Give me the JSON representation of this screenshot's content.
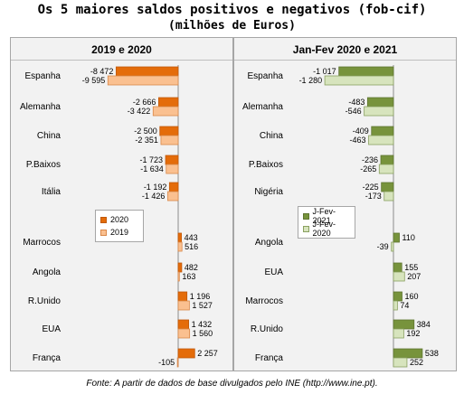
{
  "title": "Os 5 maiores saldos positivos e negativos (fob-cif)",
  "subtitle": "(milhões de Euros)",
  "footer": "Fonte: A partir de dados de base divulgados pelo INE (http://www.ine.pt).",
  "colors": {
    "dark_orange": "#e46c0a",
    "light_orange": "#fac090",
    "dark_green": "#77933c",
    "light_green": "#d7e4bd"
  },
  "chart_data": [
    {
      "type": "bar",
      "orientation": "horizontal",
      "title": "2019 e 2020",
      "categories": [
        "Espanha",
        "Alemanha",
        "China",
        "P.Baixos",
        "Itália",
        "Marrocos",
        "Angola",
        "R.Unido",
        "EUA",
        "França"
      ],
      "series": [
        {
          "name": "2020",
          "values": [
            -8472,
            -2666,
            -2500,
            -1723,
            -1192,
            443,
            482,
            1196,
            1432,
            2257
          ],
          "labels": [
            "-8 472",
            "-2 666",
            "-2 500",
            "-1 723",
            "-1 192",
            "443",
            "482",
            "1 196",
            "1 432",
            "2 257"
          ]
        },
        {
          "name": "2019",
          "values": [
            -9595,
            -3422,
            -2351,
            -1634,
            -1426,
            516,
            163,
            1527,
            1560,
            -105
          ],
          "labels": [
            "-9 595",
            "-3 422",
            "-2 351",
            "-1 634",
            "-1 426",
            "516",
            "163",
            "1 527",
            "1 560",
            "-105"
          ]
        }
      ],
      "legend_position": "middle-center"
    },
    {
      "type": "bar",
      "orientation": "horizontal",
      "title": "Jan-Fev 2020 e 2021",
      "categories": [
        "Espanha",
        "Alemanha",
        "China",
        "P.Baixos",
        "Nigéria",
        "Angola",
        "EUA",
        "Marrocos",
        "R.Unido",
        "França"
      ],
      "series": [
        {
          "name": "J-Fev-2021",
          "values": [
            -1017,
            -483,
            -409,
            -236,
            -225,
            110,
            155,
            160,
            384,
            538
          ],
          "labels": [
            "-1 017",
            "-483",
            "-409",
            "-236",
            "-225",
            "110",
            "155",
            "160",
            "384",
            "538"
          ]
        },
        {
          "name": "J-Fev-2020",
          "values": [
            -1280,
            -546,
            -463,
            -265,
            -173,
            -39,
            207,
            74,
            192,
            252
          ],
          "labels": [
            "-1 280",
            "-546",
            "-463",
            "-265",
            "-173",
            "-39",
            "207",
            "74",
            "192",
            "252"
          ]
        }
      ],
      "legend_position": "middle-center"
    }
  ]
}
